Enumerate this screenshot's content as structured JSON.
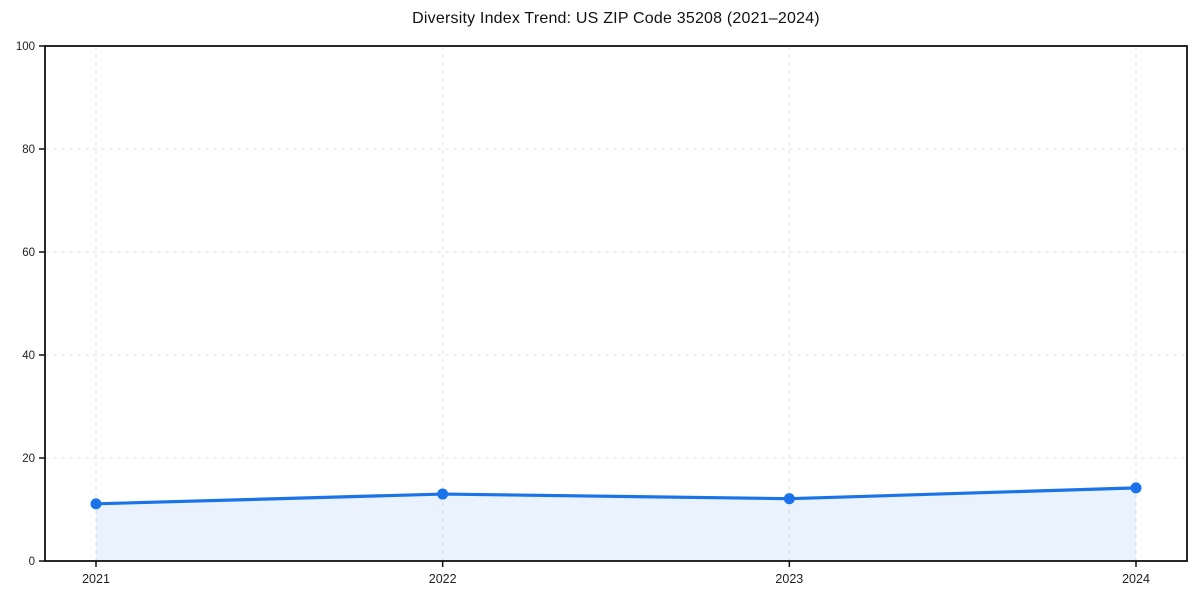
{
  "page": {
    "background": "#ffffff"
  },
  "chart_data": {
    "type": "line",
    "title": "Diversity Index Trend: US ZIP Code 35208 (2021–2024)",
    "categories": [
      "2021",
      "2022",
      "2023",
      "2024"
    ],
    "series": [
      {
        "name": "Diversity Index",
        "values": [
          11.1,
          13.0,
          12.1,
          14.2
        ]
      }
    ],
    "xlabel": "",
    "ylabel": "",
    "ylim": [
      0,
      100
    ],
    "yticks": [
      0,
      20,
      40,
      60,
      80,
      100
    ],
    "grid": true,
    "grid_style": "dashed",
    "legend_position": "none",
    "area_fill": true,
    "marker": "circle",
    "colors": {
      "line": "#1a73e8",
      "marker": "#1a73e8",
      "area_fill": "rgba(26,115,232,0.09)",
      "grid": "#e3e3e3",
      "axis_border": "#111111",
      "tick_text": "#222222",
      "title_text": "#111111"
    }
  }
}
